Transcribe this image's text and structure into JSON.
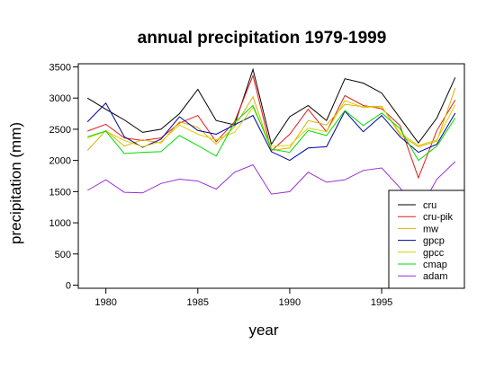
{
  "chart_data": {
    "type": "line",
    "title": "annual precipitation 1979-1999",
    "xlabel": "year",
    "ylabel": "precipitation (mm)",
    "xlim": [
      1978.5,
      1999.5
    ],
    "ylim": [
      -50,
      3550
    ],
    "x_ticks": [
      1980,
      1985,
      1990,
      1995
    ],
    "y_ticks": [
      0,
      500,
      1000,
      1500,
      2000,
      2500,
      3000,
      3500
    ],
    "grid": false,
    "legend_position": "bottom-right",
    "x": [
      1979,
      1980,
      1981,
      1982,
      1983,
      1984,
      1985,
      1986,
      1987,
      1988,
      1989,
      1990,
      1991,
      1992,
      1993,
      1994,
      1995,
      1996,
      1997,
      1998,
      1999
    ],
    "series": [
      {
        "name": "cru",
        "color": "#000000",
        "values": [
          3000,
          2820,
          2650,
          2450,
          2500,
          2750,
          3140,
          2640,
          2570,
          3460,
          2260,
          2700,
          2880,
          2640,
          3310,
          3240,
          3080,
          2680,
          2280,
          2680,
          3330
        ]
      },
      {
        "name": "cru-pik",
        "color": "#e41a1c",
        "values": [
          2470,
          2580,
          2360,
          2320,
          2360,
          2600,
          2720,
          2300,
          2620,
          3360,
          2150,
          2420,
          2820,
          2460,
          3040,
          2880,
          2830,
          2560,
          1720,
          2480,
          2970
        ]
      },
      {
        "name": "mw",
        "color": "#e0b000",
        "values": [
          2160,
          2480,
          2230,
          2330,
          2280,
          2620,
          2530,
          2260,
          2540,
          3020,
          2160,
          2200,
          2640,
          2570,
          2900,
          2860,
          2870,
          2410,
          2220,
          2310,
          3160
        ]
      },
      {
        "name": "gpcp",
        "color": "#0000a0",
        "values": [
          2620,
          2920,
          2380,
          2210,
          2340,
          2700,
          2480,
          2420,
          2570,
          2720,
          2140,
          2000,
          2200,
          2220,
          2790,
          2460,
          2720,
          2380,
          2130,
          2260,
          2760
        ]
      },
      {
        "name": "gpcc",
        "color": "#d4d400",
        "values": [
          2360,
          2470,
          2320,
          2220,
          2300,
          2570,
          2420,
          2330,
          2450,
          2850,
          2230,
          2240,
          2520,
          2460,
          2960,
          2850,
          2860,
          2440,
          2240,
          2330,
          2890
        ]
      },
      {
        "name": "cmap",
        "color": "#00dd00",
        "values": [
          2380,
          2470,
          2110,
          2130,
          2140,
          2400,
          2240,
          2070,
          2610,
          2880,
          2180,
          2130,
          2480,
          2400,
          2800,
          2560,
          2760,
          2510,
          2000,
          2230,
          2680
        ]
      },
      {
        "name": "adam",
        "color": "#9a2ed6",
        "values": [
          1520,
          1690,
          1490,
          1480,
          1630,
          1700,
          1670,
          1540,
          1810,
          1930,
          1460,
          1500,
          1810,
          1650,
          1690,
          1840,
          1880,
          1560,
          1170,
          1700,
          1980
        ]
      }
    ]
  }
}
